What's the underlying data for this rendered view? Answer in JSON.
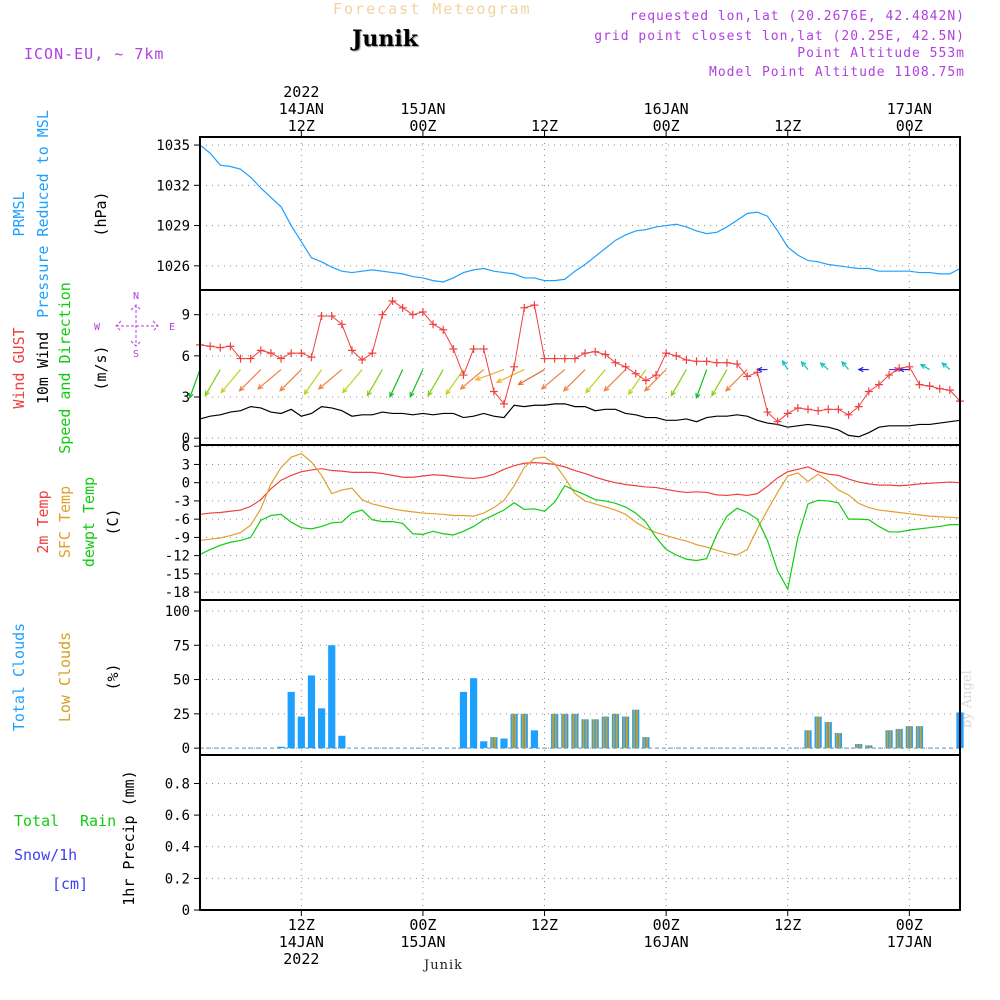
{
  "header": {
    "title": "Forecast Meteogram",
    "location": "Junik",
    "model": "ICON-EU, ~ 7km",
    "requested": "requested lon,lat (20.2676E, 42.4842N)",
    "gridpoint": "grid point closest lon,lat (20.25E, 42.5N)",
    "point_alt": "Point Altitude 553m",
    "model_alt": "Model Point Altitude 1108.75m",
    "footer_location": "Junik",
    "watermark": "by Angel"
  },
  "colors": {
    "pressure": "#1ea0ff",
    "gust": "#f04040",
    "wind": "#000000",
    "temp": "#f04040",
    "sfc": "#e0a030",
    "dew": "#10cc10",
    "total_clouds": "#1ea0ff",
    "low_clouds": "#d4a020",
    "rain": "#10cc10",
    "snow": "#4040f0",
    "info": "#b040e0"
  },
  "time_axis": {
    "x_min": 0,
    "x_max": 75,
    "top_ticks": [
      {
        "x": 10,
        "lines": [
          "2022",
          "14JAN",
          "12Z"
        ]
      },
      {
        "x": 22,
        "lines": [
          "15JAN",
          "00Z"
        ]
      },
      {
        "x": 34,
        "lines": [
          "12Z"
        ]
      },
      {
        "x": 46,
        "lines": [
          "16JAN",
          "00Z"
        ]
      },
      {
        "x": 58,
        "lines": [
          "12Z"
        ]
      },
      {
        "x": 70,
        "lines": [
          "17JAN",
          "00Z"
        ]
      }
    ],
    "bottom_ticks": [
      {
        "x": 10,
        "lines": [
          "12Z",
          "14JAN",
          "2022"
        ]
      },
      {
        "x": 22,
        "lines": [
          "00Z",
          "15JAN"
        ]
      },
      {
        "x": 34,
        "lines": [
          "12Z"
        ]
      },
      {
        "x": 46,
        "lines": [
          "00Z",
          "16JAN"
        ]
      },
      {
        "x": 58,
        "lines": [
          "12Z"
        ]
      },
      {
        "x": 70,
        "lines": [
          "00Z",
          "17JAN"
        ]
      }
    ]
  },
  "panels": {
    "pressure": {
      "labels": [
        "PRMSL",
        "Pressure Reduced to MSL",
        "(hPa)"
      ],
      "yticks": [
        1026,
        1029,
        1032,
        1035
      ],
      "ylim": [
        1024.2,
        1035.6
      ]
    },
    "wind": {
      "labels": [
        "Wind GUST",
        "10m Wind",
        "Speed and Direction",
        "(m/s)"
      ],
      "compass": [
        "N",
        "W",
        "E",
        "S"
      ],
      "yticks": [
        0,
        3,
        6,
        9
      ],
      "ylim": [
        -0.5,
        10.8
      ]
    },
    "temp": {
      "labels": [
        "2m Temp",
        "SFC Temp",
        "dewpt Temp",
        "(C)"
      ],
      "yticks": [
        -18,
        -15,
        -12,
        -9,
        -6,
        -3,
        0,
        3,
        6
      ],
      "ylim": [
        -19.3,
        6.2
      ]
    },
    "clouds": {
      "labels": [
        "Total Clouds",
        "Low Clouds",
        "(%)"
      ],
      "yticks": [
        0,
        25,
        50,
        75,
        100
      ],
      "ylim": [
        -5,
        108
      ]
    },
    "precip": {
      "labels": [
        "Total",
        "Rain",
        "Snow/1h",
        "[cm]",
        "1hr Precip (mm)"
      ],
      "yticks": [
        "0",
        "0.2",
        "0.4",
        "0.6",
        "0.8"
      ],
      "ylim": [
        0,
        0.98
      ]
    }
  },
  "chart_data": [
    {
      "type": "line",
      "title": "PRMSL Pressure Reduced to MSL",
      "ylabel": "(hPa)",
      "x": [
        0,
        1,
        2,
        3,
        4,
        5,
        6,
        7,
        8,
        9,
        10,
        11,
        12,
        13,
        14,
        15,
        16,
        17,
        18,
        19,
        20,
        21,
        22,
        23,
        24,
        25,
        26,
        27,
        28,
        29,
        30,
        31,
        32,
        33,
        34,
        35,
        36,
        37,
        38,
        39,
        40,
        41,
        42,
        43,
        44,
        45,
        46,
        47,
        48,
        49,
        50,
        51,
        52,
        53,
        54,
        55,
        56,
        57,
        58,
        59,
        60,
        61,
        62,
        63,
        64,
        65,
        66,
        67,
        68,
        69,
        70,
        71,
        72,
        73,
        74,
        75
      ],
      "series": [
        {
          "name": "PRMSL",
          "values": [
            1035.0,
            1034.4,
            1033.5,
            1033.4,
            1033.2,
            1032.6,
            1031.8,
            1031.1,
            1030.4,
            1029.0,
            1027.8,
            1026.6,
            1026.3,
            1025.9,
            1025.6,
            1025.5,
            1025.6,
            1025.7,
            1025.6,
            1025.5,
            1025.4,
            1025.2,
            1025.1,
            1024.9,
            1024.8,
            1025.1,
            1025.5,
            1025.7,
            1025.8,
            1025.6,
            1025.5,
            1025.4,
            1025.1,
            1025.1,
            1024.9,
            1024.9,
            1025.0,
            1025.6,
            1026.1,
            1026.7,
            1027.3,
            1027.9,
            1028.3,
            1028.6,
            1028.7,
            1028.9,
            1029.0,
            1029.1,
            1028.9,
            1028.6,
            1028.4,
            1028.5,
            1028.9,
            1029.4,
            1029.9,
            1030.0,
            1029.7,
            1028.6,
            1027.4,
            1026.8,
            1026.4,
            1026.3,
            1026.1,
            1026.0,
            1025.9,
            1025.8,
            1025.8,
            1025.6,
            1025.6,
            1025.6,
            1025.6,
            1025.5,
            1025.5,
            1025.4,
            1025.4,
            1025.8
          ]
        }
      ]
    },
    {
      "type": "line",
      "title": "Wind GUST / 10m Wind Speed and Direction",
      "ylabel": "(m/s)",
      "x": [
        0,
        1,
        2,
        3,
        4,
        5,
        6,
        7,
        8,
        9,
        10,
        11,
        12,
        13,
        14,
        15,
        16,
        17,
        18,
        19,
        20,
        21,
        22,
        23,
        24,
        25,
        26,
        27,
        28,
        29,
        30,
        31,
        32,
        33,
        34,
        35,
        36,
        37,
        38,
        39,
        40,
        41,
        42,
        43,
        44,
        45,
        46,
        47,
        48,
        49,
        50,
        51,
        52,
        53,
        54,
        55,
        56,
        57,
        58,
        59,
        60,
        61,
        62,
        63,
        64,
        65,
        66,
        67,
        68,
        69,
        70,
        71,
        72,
        73,
        74,
        75
      ],
      "series": [
        {
          "name": "Wind GUST",
          "values": [
            6.8,
            6.7,
            6.6,
            6.7,
            5.8,
            5.8,
            6.4,
            6.2,
            5.8,
            6.2,
            6.2,
            5.9,
            8.9,
            8.9,
            8.3,
            6.4,
            5.7,
            6.2,
            9.0,
            10.0,
            9.5,
            9.0,
            9.2,
            8.3,
            7.9,
            6.5,
            4.6,
            6.5,
            6.5,
            3.4,
            2.5,
            5.2,
            9.5,
            9.7,
            5.8,
            5.8,
            5.8,
            5.8,
            6.2,
            6.3,
            6.1,
            5.5,
            5.2,
            4.7,
            4.2,
            4.6,
            6.2,
            6.0,
            5.7,
            5.6,
            5.6,
            5.5,
            5.5,
            5.4,
            4.5,
            4.8,
            1.9,
            1.2,
            1.8,
            2.2,
            2.1,
            2.0,
            2.1,
            2.1,
            1.7,
            2.3,
            3.4,
            3.9,
            4.6,
            5.1,
            5.2,
            3.9,
            3.8,
            3.6,
            3.5,
            2.7
          ]
        },
        {
          "name": "10m Wind",
          "values": [
            1.4,
            1.6,
            1.7,
            1.9,
            2.0,
            2.3,
            2.2,
            1.9,
            1.8,
            2.1,
            1.6,
            1.8,
            2.3,
            2.2,
            2.0,
            1.6,
            1.7,
            1.7,
            1.9,
            1.8,
            1.8,
            1.7,
            1.8,
            1.7,
            1.8,
            1.8,
            1.5,
            1.6,
            1.8,
            1.6,
            1.5,
            2.4,
            2.3,
            2.4,
            2.4,
            2.5,
            2.5,
            2.3,
            2.3,
            2.0,
            2.1,
            2.1,
            1.8,
            1.7,
            1.5,
            1.5,
            1.3,
            1.3,
            1.4,
            1.2,
            1.5,
            1.6,
            1.6,
            1.7,
            1.6,
            1.3,
            1.1,
            1.0,
            0.8,
            0.9,
            1.0,
            0.9,
            0.8,
            0.6,
            0.2,
            0.1,
            0.4,
            0.8,
            0.9,
            0.9,
            0.9,
            1.0,
            1.0,
            1.1,
            1.2,
            1.3
          ]
        }
      ]
    },
    {
      "type": "line",
      "title": "2m Temp / SFC Temp / dewpt Temp",
      "ylabel": "(C)",
      "x": [
        0,
        1,
        2,
        3,
        4,
        5,
        6,
        7,
        8,
        9,
        10,
        11,
        12,
        13,
        14,
        15,
        16,
        17,
        18,
        19,
        20,
        21,
        22,
        23,
        24,
        25,
        26,
        27,
        28,
        29,
        30,
        31,
        32,
        33,
        34,
        35,
        36,
        37,
        38,
        39,
        40,
        41,
        42,
        43,
        44,
        45,
        46,
        47,
        48,
        49,
        50,
        51,
        52,
        53,
        54,
        55,
        56,
        57,
        58,
        59,
        60,
        61,
        62,
        63,
        64,
        65,
        66,
        67,
        68,
        69,
        70,
        71,
        72,
        73,
        74,
        75
      ],
      "series": [
        {
          "name": "2m Temp",
          "values": [
            -5.2,
            -5.0,
            -4.9,
            -4.7,
            -4.5,
            -3.9,
            -2.8,
            -1.0,
            0.4,
            1.2,
            1.8,
            2.1,
            2.3,
            2.0,
            1.9,
            1.7,
            1.7,
            1.7,
            1.5,
            1.2,
            0.9,
            0.9,
            1.1,
            1.3,
            1.2,
            1.0,
            0.8,
            0.7,
            0.9,
            1.4,
            2.2,
            2.8,
            3.2,
            3.3,
            3.2,
            3.0,
            2.6,
            2.0,
            1.5,
            0.9,
            0.4,
            0.0,
            -0.3,
            -0.5,
            -0.7,
            -0.8,
            -1.1,
            -1.4,
            -1.6,
            -1.5,
            -1.6,
            -2.0,
            -2.1,
            -1.9,
            -2.1,
            -1.8,
            -0.6,
            0.8,
            1.8,
            2.2,
            2.6,
            1.8,
            1.4,
            1.2,
            0.6,
            0.1,
            -0.2,
            -0.4,
            -0.4,
            -0.5,
            -0.4,
            -0.2,
            -0.1,
            0.0,
            0.1,
            0.0
          ]
        },
        {
          "name": "SFC Temp",
          "values": [
            -9.5,
            -9.3,
            -9.1,
            -8.7,
            -8.2,
            -7.0,
            -4.3,
            -0.2,
            2.5,
            4.2,
            4.8,
            3.4,
            1.2,
            -1.8,
            -1.2,
            -0.9,
            -2.8,
            -3.5,
            -3.9,
            -4.3,
            -4.6,
            -4.8,
            -5.0,
            -5.1,
            -5.2,
            -5.4,
            -5.4,
            -5.5,
            -5.0,
            -4.1,
            -2.9,
            -0.5,
            2.5,
            4.0,
            4.2,
            3.1,
            0.8,
            -1.8,
            -3.0,
            -3.5,
            -4.0,
            -4.5,
            -5.2,
            -6.5,
            -7.5,
            -8.2,
            -8.7,
            -9.2,
            -9.6,
            -10.2,
            -10.6,
            -11.1,
            -11.6,
            -11.9,
            -11.0,
            -7.6,
            -4.5,
            -1.6,
            1.1,
            1.6,
            0.2,
            1.4,
            0.3,
            -1.2,
            -2.0,
            -3.4,
            -4.1,
            -4.5,
            -4.7,
            -4.9,
            -5.1,
            -5.3,
            -5.5,
            -5.6,
            -5.7,
            -5.8
          ]
        },
        {
          "name": "dewpt Temp",
          "values": [
            -11.8,
            -11.0,
            -10.3,
            -9.8,
            -9.5,
            -9.0,
            -6.2,
            -5.4,
            -5.2,
            -6.5,
            -7.4,
            -7.6,
            -7.2,
            -6.6,
            -6.5,
            -5.0,
            -4.5,
            -6.1,
            -6.4,
            -6.4,
            -6.7,
            -8.4,
            -8.5,
            -8.0,
            -8.4,
            -8.6,
            -8.0,
            -7.2,
            -6.1,
            -5.3,
            -4.5,
            -3.3,
            -4.4,
            -4.3,
            -4.7,
            -3.2,
            -0.5,
            -1.3,
            -2.0,
            -2.8,
            -3.0,
            -3.4,
            -4.0,
            -5.0,
            -6.5,
            -9.0,
            -11.0,
            -11.9,
            -12.6,
            -12.8,
            -12.5,
            -8.5,
            -5.5,
            -4.2,
            -4.9,
            -6.0,
            -9.5,
            -14.5,
            -17.5,
            -9.0,
            -3.5,
            -2.9,
            -3.0,
            -3.3,
            -6.0,
            -6.0,
            -6.1,
            -7.2,
            -8.1,
            -8.1,
            -7.8,
            -7.6,
            -7.4,
            -7.2,
            -6.9,
            -6.9
          ]
        }
      ]
    },
    {
      "type": "bar",
      "title": "Total Clouds / Low Clouds",
      "ylabel": "(%)",
      "x": [
        8,
        9,
        10,
        11,
        12,
        13,
        14,
        15,
        26,
        27,
        28,
        29,
        30,
        31,
        32,
        33,
        35,
        36,
        37,
        38,
        39,
        40,
        41,
        42,
        43,
        44,
        45,
        46,
        60,
        61,
        62,
        63,
        65,
        66,
        68,
        69,
        70,
        71,
        75
      ],
      "series": [
        {
          "name": "Total Clouds",
          "values": [
            1,
            41,
            23,
            53,
            29,
            75,
            9,
            0,
            41,
            51,
            5,
            8,
            7,
            25,
            25,
            13,
            25,
            25,
            25,
            21,
            21,
            23,
            25,
            23,
            28,
            8,
            0,
            0,
            13,
            23,
            19,
            11,
            3,
            2,
            13,
            14,
            16,
            16,
            26
          ]
        },
        {
          "name": "Low Clouds",
          "values": [
            0,
            0,
            0,
            0,
            0,
            0,
            0,
            0,
            0,
            0,
            0,
            8,
            0,
            25,
            25,
            0,
            25,
            25,
            25,
            21,
            21,
            23,
            25,
            23,
            28,
            8,
            0,
            0,
            13,
            23,
            19,
            11,
            3,
            2,
            13,
            14,
            16,
            16,
            0
          ]
        }
      ]
    },
    {
      "type": "line",
      "title": "Total Rain / Snow/1h",
      "ylabel": "1hr Precip (mm)",
      "x": [
        0,
        75
      ],
      "series": [
        {
          "name": "Total Rain",
          "values": [
            0,
            0
          ]
        },
        {
          "name": "Snow/1h",
          "values": [
            0,
            0
          ]
        }
      ]
    }
  ],
  "wind_direction": {
    "note": "arrow heading degrees (0=north,90=east) at x",
    "x": [
      0,
      2,
      4,
      6,
      8,
      10,
      12,
      14,
      16,
      18,
      20,
      22,
      24,
      26,
      28,
      30,
      32,
      34,
      36,
      38,
      40,
      42,
      44,
      46,
      48,
      50,
      52,
      54,
      56,
      58,
      60,
      62,
      64,
      66,
      68,
      70,
      72,
      74
    ],
    "deg": [
      200,
      210,
      220,
      225,
      230,
      225,
      215,
      230,
      220,
      210,
      205,
      205,
      210,
      215,
      230,
      250,
      245,
      240,
      230,
      225,
      220,
      225,
      215,
      225,
      210,
      200,
      210,
      225,
      270,
      330,
      320,
      310,
      320,
      270,
      90,
      270,
      300,
      310
    ]
  }
}
